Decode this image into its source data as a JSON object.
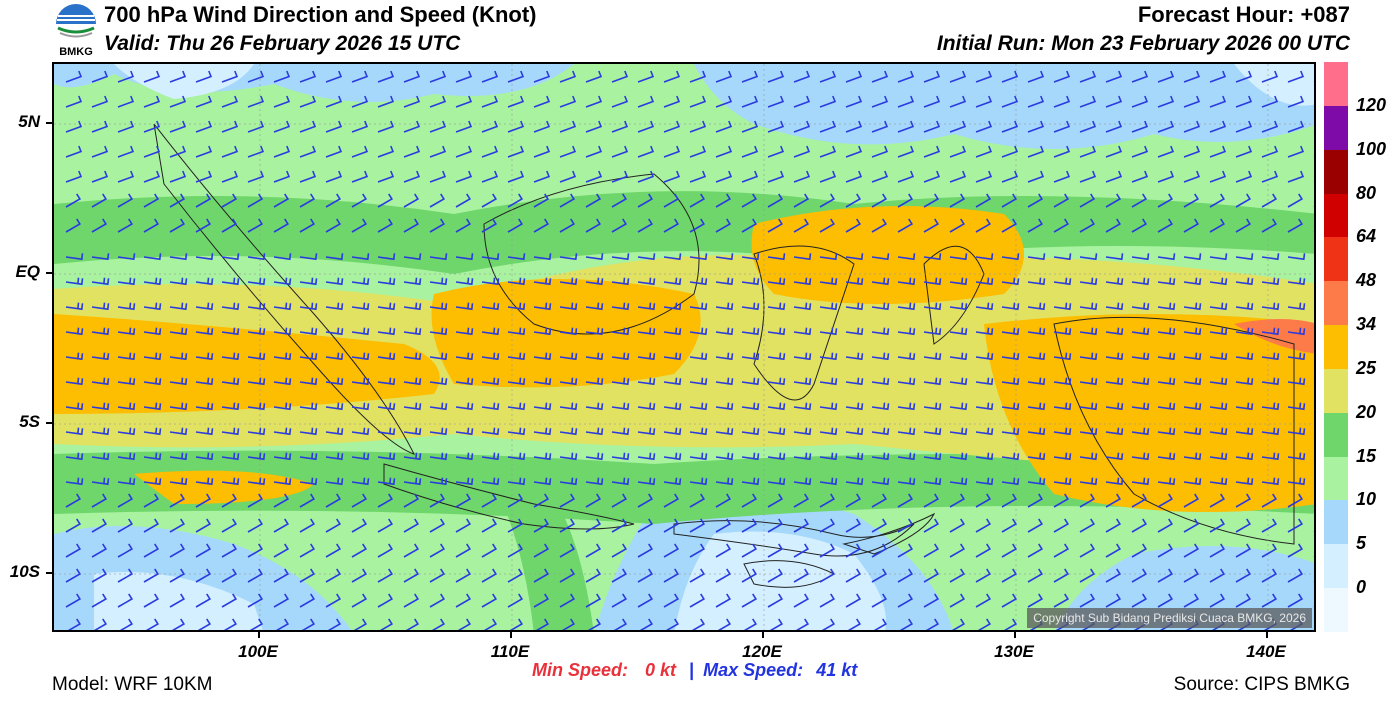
{
  "header": {
    "title": "700 hPa Wind Direction and Speed (Knot)",
    "valid": "Valid: Thu 26 February 2026 15 UTC",
    "forecast_hour": "Forecast Hour: +087",
    "initial_run": "Initial Run: Mon 23 February 2026 00 UTC",
    "logo_text": "BMKG"
  },
  "map": {
    "lat_labels": [
      "5N",
      "EQ",
      "5S",
      "10S"
    ],
    "lon_labels": [
      "100E",
      "110E",
      "120E",
      "130E",
      "140E"
    ],
    "copyright": "Copyright Sub Bidang Prediksi Cuaca BMKG, 2026"
  },
  "colorbar": {
    "labels": [
      "120",
      "100",
      "80",
      "64",
      "48",
      "34",
      "25",
      "20",
      "15",
      "10",
      "5",
      "0"
    ],
    "colors": [
      "#ff6e8a",
      "#7e0aa7",
      "#9b0000",
      "#d10000",
      "#ee3316",
      "#fd7b48",
      "#fdbd00",
      "#e2e262",
      "#6ed66a",
      "#a9f2a0",
      "#a6d8fc",
      "#d4efff",
      "#eef8ff"
    ]
  },
  "footer": {
    "model": "Model: WRF 10KM",
    "source": "Source: CIPS BMKG",
    "min_label": "Min Speed:",
    "min_value": "0 kt",
    "separator": "|",
    "max_label": "Max Speed:",
    "max_value": "41 kt"
  }
}
